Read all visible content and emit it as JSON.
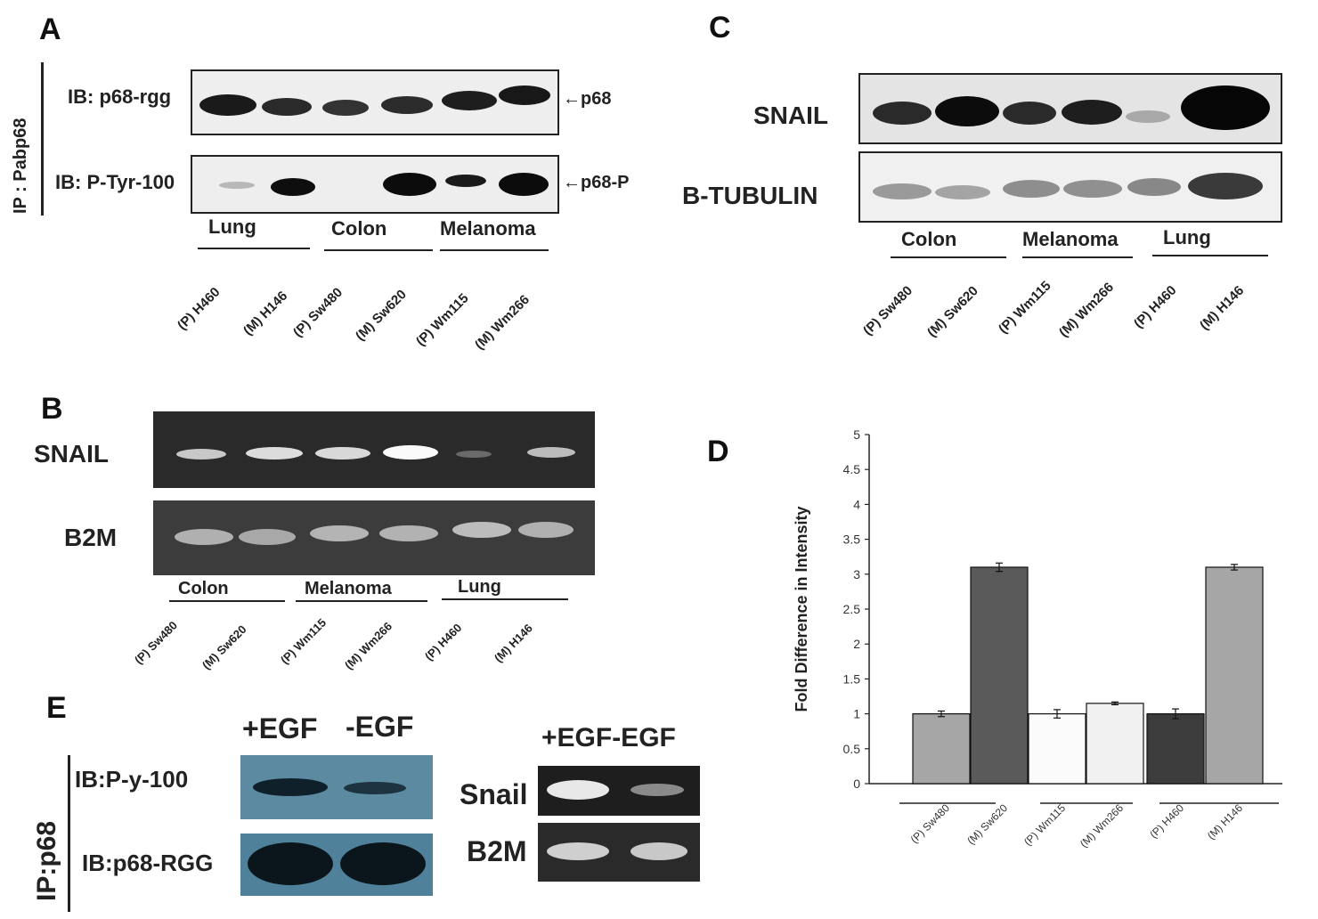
{
  "panels": {
    "A": {
      "letter": "A",
      "ip_label": "IP : Pabp68",
      "blot1_label": "IB: p68-rgg",
      "blot1_marker": "←p68",
      "blot2_label": "IB: P-Tyr-100",
      "blot2_marker": "←p68-P",
      "groups": [
        "Lung",
        "Colon",
        "Melanoma"
      ],
      "lanes": [
        "(P) H460",
        "(M) H146",
        "(P) Sw480",
        "(M) Sw620",
        "(P) Wm115",
        "(M) Wm266"
      ]
    },
    "B": {
      "letter": "B",
      "row1_label": "SNAIL",
      "row2_label": "B2M",
      "groups": [
        "Colon",
        "Melanoma",
        "Lung"
      ],
      "lanes": [
        "(P) Sw480",
        "(M) Sw620",
        "(P) Wm115",
        "(M) Wm266",
        "(P) H460",
        "(M) H146"
      ]
    },
    "C": {
      "letter": "C",
      "row1_label": "SNAIL",
      "row2_label": "B-TUBULIN",
      "groups": [
        "Colon",
        "Melanoma",
        "Lung"
      ],
      "lanes": [
        "(P) Sw480",
        "(M) Sw620",
        "(P) Wm115",
        "(M) Wm266",
        "(P) H460",
        "(M) H146"
      ]
    },
    "D": {
      "letter": "D"
    },
    "E": {
      "letter": "E",
      "ip_label": "IP:p68",
      "col1": "+EGF",
      "col2": "-EGF",
      "row1_label": "IB:P-y-100",
      "row2_label": "IB:p68-RGG",
      "rt_header": "+EGF-EGF",
      "rt_row1": "Snail",
      "rt_row2": "B2M"
    }
  },
  "chart_data": {
    "type": "bar",
    "title": "",
    "xlabel": "",
    "ylabel": "Fold Difference in Intensity",
    "ylim": [
      0,
      5
    ],
    "yticks": [
      "0",
      "0.5",
      "1",
      "1.5",
      "2",
      "2.5",
      "3",
      "3.5",
      "4",
      "4.5",
      "5"
    ],
    "categories": [
      "(P) Sw480",
      "(M) Sw620",
      "(P) Wm115",
      "(M) Wm266",
      "(P) H460",
      "(M) H146"
    ],
    "values": [
      1.0,
      3.1,
      1.0,
      1.15,
      1.0,
      3.1
    ],
    "errors": [
      0.04,
      0.06,
      0.06,
      0.02,
      0.07,
      0.04
    ],
    "bar_colors": [
      "#a6a6a6",
      "#5a5a5a",
      "#fbfbfb",
      "#f0f0f0",
      "#3c3c3c",
      "#a6a6a6"
    ],
    "grid": false,
    "legend": "none"
  }
}
